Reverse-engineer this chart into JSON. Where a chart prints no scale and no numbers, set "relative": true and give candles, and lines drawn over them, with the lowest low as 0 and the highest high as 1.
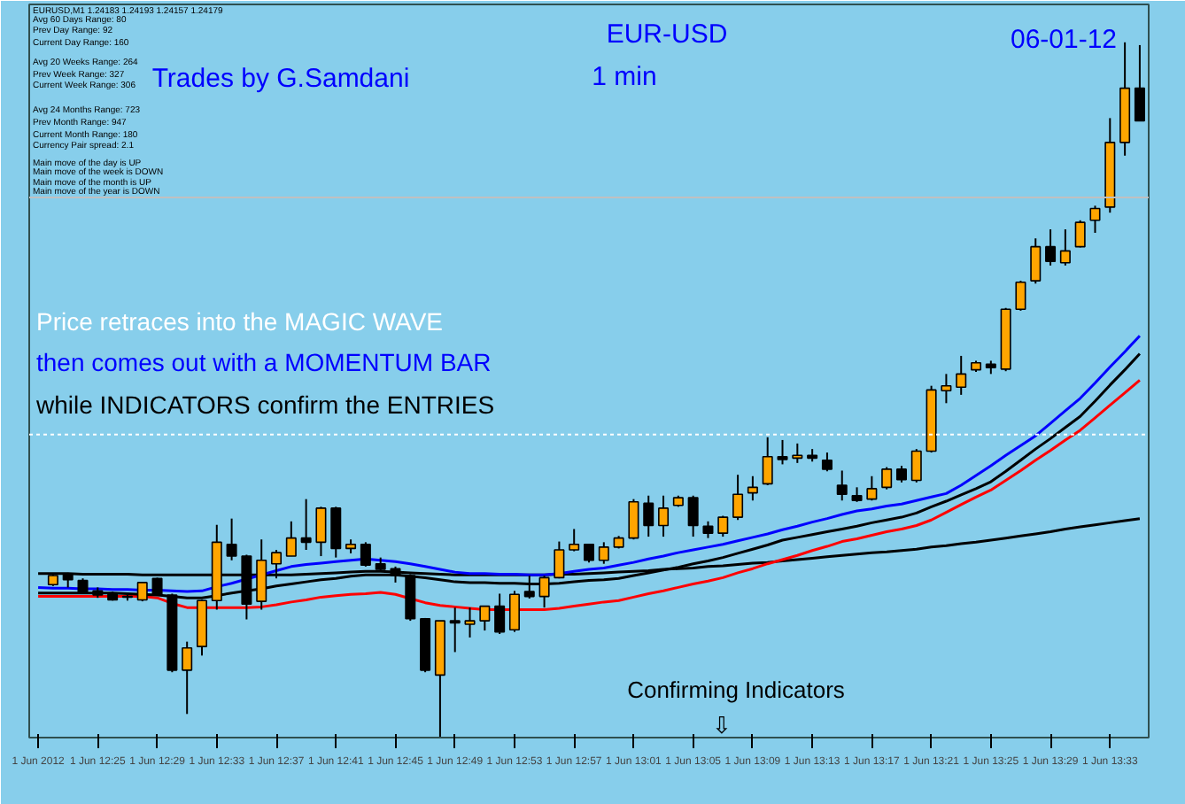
{
  "chart_data": {
    "type": "candlestick",
    "title": "EUR-USD",
    "subtitle": "1 min",
    "relative": true,
    "tick_labels": "x",
    "categories": [
      "1 Jun 2012",
      null,
      null,
      null,
      "1 Jun 12:25",
      null,
      null,
      null,
      "1 Jun 12:29",
      null,
      null,
      null,
      "1 Jun 12:33",
      null,
      null,
      null,
      "1 Jun 12:37",
      null,
      null,
      null,
      "1 Jun 12:41",
      null,
      null,
      null,
      "1 Jun 12:45",
      null,
      null,
      null,
      "1 Jun 12:49",
      null,
      null,
      null,
      "1 Jun 12:53",
      null,
      null,
      null,
      "1 Jun 12:57",
      null,
      null,
      null,
      "1 Jun 13:01",
      null,
      null,
      null,
      "1 Jun 13:05",
      null,
      null,
      null,
      "1 Jun 13:09",
      null,
      null,
      null,
      "1 Jun 13:13",
      null,
      null,
      null,
      "1 Jun 13:17",
      null,
      null,
      null,
      "1 Jun 13:21",
      null,
      null,
      null,
      "1 Jun 13:25",
      null,
      null,
      null,
      "1 Jun 13:29",
      null,
      null,
      null,
      "1 Jun 13:33",
      null,
      null
    ],
    "ohlc": [
      null,
      [
        0.22,
        0.235,
        0.218,
        0.233
      ],
      [
        0.235,
        0.237,
        0.216,
        0.227
      ],
      [
        0.226,
        0.229,
        0.207,
        0.209
      ],
      [
        0.211,
        0.216,
        0.201,
        0.205
      ],
      [
        0.207,
        0.21,
        0.197,
        0.198
      ],
      [
        0.203,
        0.206,
        0.197,
        0.202
      ],
      [
        0.198,
        0.224,
        0.196,
        0.223
      ],
      [
        0.229,
        0.23,
        0.204,
        0.205
      ],
      [
        0.205,
        0.207,
        0.094,
        0.097
      ],
      [
        0.097,
        0.138,
        0.034,
        0.129
      ],
      [
        0.131,
        0.198,
        0.118,
        0.197
      ],
      [
        0.197,
        0.306,
        0.184,
        0.281
      ],
      [
        0.278,
        0.315,
        0.255,
        0.261
      ],
      [
        0.261,
        0.263,
        0.17,
        0.192
      ],
      [
        0.196,
        0.285,
        0.184,
        0.255
      ],
      [
        0.25,
        0.27,
        0.229,
        0.266
      ],
      [
        0.261,
        0.311,
        0.261,
        0.287
      ],
      [
        0.287,
        0.343,
        0.27,
        0.281
      ],
      [
        0.281,
        0.332,
        0.261,
        0.33
      ],
      [
        0.33,
        0.332,
        0.259,
        0.272
      ],
      [
        0.272,
        0.285,
        0.265,
        0.278
      ],
      [
        0.278,
        0.281,
        0.246,
        0.248
      ],
      [
        0.25,
        0.259,
        0.239,
        0.242
      ],
      [
        0.243,
        0.246,
        0.223,
        0.233
      ],
      [
        0.233,
        0.235,
        0.168,
        0.171
      ],
      [
        0.171,
        0.172,
        0.094,
        0.097
      ],
      [
        0.09,
        0.168,
        0.0,
        0.168
      ],
      [
        0.168,
        0.187,
        0.123,
        0.165
      ],
      [
        0.163,
        0.187,
        0.144,
        0.168
      ],
      [
        0.168,
        0.189,
        0.154,
        0.189
      ],
      [
        0.189,
        0.207,
        0.149,
        0.152
      ],
      [
        0.155,
        0.211,
        0.152,
        0.206
      ],
      [
        0.21,
        0.233,
        0.2,
        0.203
      ],
      [
        0.203,
        0.233,
        0.187,
        0.23
      ],
      [
        0.23,
        0.282,
        0.229,
        0.27
      ],
      [
        0.27,
        0.3,
        0.268,
        0.278
      ],
      [
        0.278,
        0.279,
        0.252,
        0.255
      ],
      [
        0.255,
        0.281,
        0.25,
        0.274
      ],
      [
        0.274,
        0.29,
        0.272,
        0.287
      ],
      [
        0.287,
        0.343,
        0.285,
        0.339
      ],
      [
        0.337,
        0.348,
        0.289,
        0.305
      ],
      [
        0.305,
        0.348,
        0.289,
        0.33
      ],
      [
        0.334,
        0.348,
        0.332,
        0.345
      ],
      [
        0.345,
        0.348,
        0.289,
        0.305
      ],
      [
        0.304,
        0.311,
        0.287,
        0.294
      ],
      [
        0.294,
        0.319,
        0.289,
        0.317
      ],
      [
        0.317,
        0.378,
        0.313,
        0.35
      ],
      [
        0.352,
        0.376,
        0.341,
        0.36
      ],
      [
        0.365,
        0.432,
        0.363,
        0.404
      ],
      [
        0.404,
        0.428,
        0.393,
        0.4
      ],
      [
        0.402,
        0.423,
        0.395,
        0.406
      ],
      [
        0.406,
        0.415,
        0.397,
        0.402
      ],
      [
        0.399,
        0.41,
        0.383,
        0.386
      ],
      [
        0.363,
        0.384,
        0.341,
        0.35
      ],
      [
        0.348,
        0.36,
        0.339,
        0.341
      ],
      [
        0.343,
        0.376,
        0.341,
        0.358
      ],
      [
        0.36,
        0.389,
        0.357,
        0.386
      ],
      [
        0.386,
        0.391,
        0.367,
        0.371
      ],
      [
        0.37,
        0.415,
        0.367,
        0.412
      ],
      [
        0.412,
        0.506,
        0.41,
        0.5
      ],
      [
        0.499,
        0.523,
        0.481,
        0.506
      ],
      [
        0.504,
        0.549,
        0.493,
        0.523
      ],
      [
        0.529,
        0.542,
        0.526,
        0.539
      ],
      [
        0.537,
        0.542,
        0.523,
        0.532
      ],
      [
        0.53,
        0.618,
        0.527,
        0.616
      ],
      [
        0.616,
        0.657,
        0.614,
        0.655
      ],
      [
        0.657,
        0.718,
        0.653,
        0.706
      ],
      [
        0.706,
        0.731,
        0.679,
        0.685
      ],
      [
        0.683,
        0.731,
        0.679,
        0.7
      ],
      [
        0.706,
        0.744,
        0.705,
        0.741
      ],
      [
        0.744,
        0.765,
        0.726,
        0.761
      ],
      [
        0.763,
        0.891,
        0.755,
        0.856
      ],
      [
        0.856,
        1.0,
        0.837,
        0.934
      ],
      [
        0.934,
        0.996,
        0.887,
        0.887
      ]
    ],
    "series": [
      {
        "type": "line",
        "color": "#000000",
        "values": [
          0.236,
          0.236,
          0.236,
          0.235,
          0.235,
          0.235,
          0.235,
          0.234,
          0.234,
          0.234,
          0.234,
          0.234,
          0.234,
          0.234,
          0.234,
          0.234,
          0.234,
          0.234,
          0.235,
          0.236,
          0.237,
          0.238,
          0.239,
          0.239,
          0.238,
          0.237,
          0.236,
          0.235,
          0.234,
          0.234,
          0.234,
          0.234,
          0.234,
          0.234,
          0.234,
          0.235,
          0.235,
          0.236,
          0.237,
          0.238,
          0.239,
          0.24,
          0.242,
          0.243,
          0.244,
          0.246,
          0.247,
          0.249,
          0.251,
          0.252,
          0.254,
          0.256,
          0.258,
          0.26,
          0.262,
          0.264,
          0.266,
          0.267,
          0.269,
          0.271,
          0.274,
          0.276,
          0.279,
          0.281,
          0.284,
          0.287,
          0.29,
          0.293,
          0.296,
          0.3,
          0.303,
          0.306,
          0.309,
          0.312,
          0.315
        ]
      },
      {
        "type": "line",
        "color": "#ff0000",
        "values": [
          0.203,
          0.203,
          0.203,
          0.203,
          0.203,
          0.203,
          0.203,
          0.203,
          0.201,
          0.193,
          0.187,
          0.187,
          0.187,
          0.187,
          0.187,
          0.188,
          0.191,
          0.195,
          0.198,
          0.202,
          0.204,
          0.206,
          0.207,
          0.209,
          0.206,
          0.2,
          0.194,
          0.19,
          0.188,
          0.186,
          0.184,
          0.184,
          0.184,
          0.184,
          0.184,
          0.186,
          0.189,
          0.192,
          0.195,
          0.197,
          0.202,
          0.207,
          0.211,
          0.216,
          0.221,
          0.225,
          0.23,
          0.237,
          0.243,
          0.25,
          0.256,
          0.262,
          0.269,
          0.275,
          0.282,
          0.286,
          0.291,
          0.296,
          0.3,
          0.305,
          0.313,
          0.324,
          0.335,
          0.346,
          0.356,
          0.37,
          0.384,
          0.399,
          0.413,
          0.428,
          0.442,
          0.46,
          0.478,
          0.496,
          0.514
        ]
      },
      {
        "type": "line",
        "color": "#000000",
        "values": [
          0.208,
          0.208,
          0.208,
          0.208,
          0.208,
          0.208,
          0.207,
          0.206,
          0.205,
          0.203,
          0.201,
          0.201,
          0.204,
          0.208,
          0.211,
          0.214,
          0.218,
          0.221,
          0.224,
          0.227,
          0.229,
          0.232,
          0.234,
          0.234,
          0.234,
          0.232,
          0.23,
          0.227,
          0.224,
          0.223,
          0.223,
          0.222,
          0.222,
          0.221,
          0.221,
          0.222,
          0.224,
          0.226,
          0.227,
          0.229,
          0.233,
          0.237,
          0.241,
          0.245,
          0.25,
          0.254,
          0.259,
          0.265,
          0.271,
          0.277,
          0.284,
          0.288,
          0.292,
          0.296,
          0.3,
          0.304,
          0.309,
          0.313,
          0.317,
          0.323,
          0.332,
          0.34,
          0.349,
          0.358,
          0.368,
          0.383,
          0.399,
          0.415,
          0.43,
          0.446,
          0.462,
          0.484,
          0.507,
          0.529,
          0.552
        ]
      },
      {
        "type": "line",
        "color": "#0000ff",
        "values": [
          0.216,
          0.215,
          0.215,
          0.214,
          0.214,
          0.213,
          0.213,
          0.212,
          0.212,
          0.211,
          0.21,
          0.211,
          0.217,
          0.222,
          0.228,
          0.234,
          0.24,
          0.246,
          0.249,
          0.251,
          0.253,
          0.255,
          0.257,
          0.255,
          0.253,
          0.25,
          0.246,
          0.242,
          0.238,
          0.236,
          0.236,
          0.235,
          0.235,
          0.234,
          0.234,
          0.236,
          0.239,
          0.242,
          0.244,
          0.248,
          0.252,
          0.257,
          0.261,
          0.266,
          0.27,
          0.274,
          0.278,
          0.283,
          0.288,
          0.293,
          0.299,
          0.304,
          0.31,
          0.315,
          0.321,
          0.326,
          0.329,
          0.333,
          0.336,
          0.341,
          0.346,
          0.351,
          0.363,
          0.377,
          0.391,
          0.406,
          0.42,
          0.434,
          0.452,
          0.47,
          0.488,
          0.51,
          0.533,
          0.555,
          0.578
        ]
      }
    ],
    "ref_lines": [
      {
        "axis": "y",
        "value": 0.436,
        "color": "#ffffff",
        "line_style": "dotted"
      },
      {
        "axis": "y",
        "value": 0.777,
        "color": "#c0c0c0",
        "line_style": "solid"
      }
    ],
    "annotations": [
      "EURUSD,M1 1.24183 1.24193 1.24157 1.24179",
      "Avg 60 Days Range: 80",
      "Prev Day Range: 92",
      "Current Day Range: 160",
      "Avg 20 Weeks Range: 264",
      "Prev Week Range: 327",
      "Current Week Range: 306",
      "Avg 24 Months Range: 723",
      "Prev Month Range: 947",
      "Current Month Range: 180",
      "Currency Pair spread: 2.1",
      "Main move of the day is UP",
      "Main move of the week is DOWN",
      "Main move of the month is UP",
      "Main move of the year is DOWN",
      "Trades by G.Samdani",
      "06-01-12",
      "Price retraces into the MAGIC WAVE",
      "then comes out with a MOMENTUM BAR",
      "while INDICATORS confirm the ENTRIES",
      "Confirming Indicators",
      "⇩"
    ]
  }
}
